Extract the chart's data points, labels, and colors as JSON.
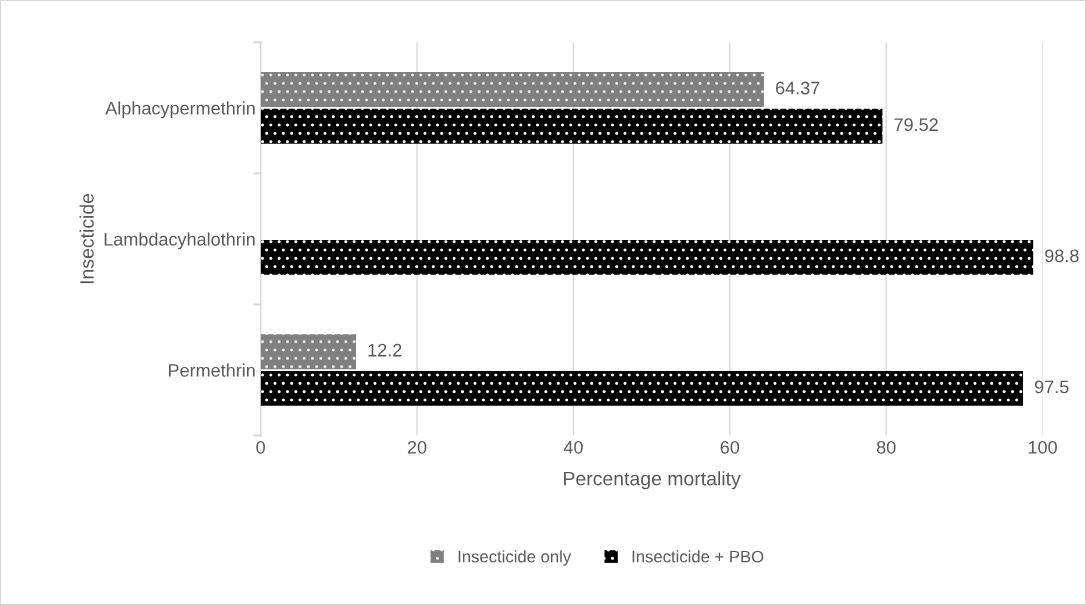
{
  "chart_data": {
    "type": "bar",
    "orientation": "horizontal",
    "xlabel": "Percentage mortality",
    "ylabel": "Insecticide",
    "categories": [
      "Alphacypermethrin",
      "Lambdacyhalothrin",
      "Permethrin"
    ],
    "series": [
      {
        "name": "Insecticide only",
        "color": "#808080",
        "values": [
          64.37,
          null,
          12.2
        ]
      },
      {
        "name": "Insecticide + PBO",
        "color": "#000000",
        "values": [
          79.52,
          98.8,
          97.5
        ]
      }
    ],
    "xlim": [
      0,
      100
    ],
    "xticks": [
      0,
      20,
      40,
      60,
      80,
      100
    ],
    "grid": "x",
    "legend": "bottom",
    "data_labels": true
  }
}
